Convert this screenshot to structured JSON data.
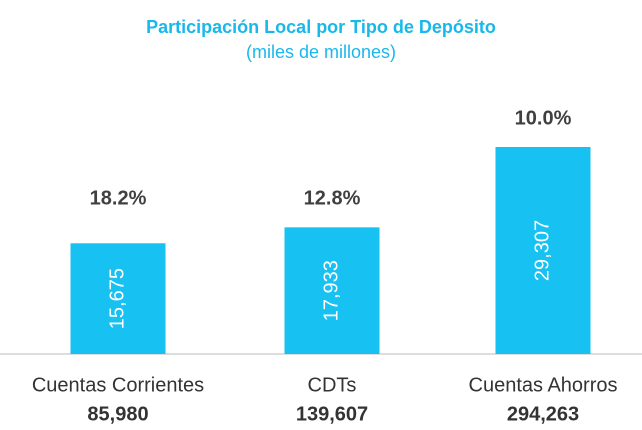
{
  "chart_data": {
    "type": "bar",
    "title": "Participación Local por Tipo de Depósito",
    "subtitle": "(miles de millones)",
    "categories": [
      "Cuentas Corrientes",
      "CDTs",
      "Cuentas Ahorros"
    ],
    "values": [
      15675,
      17933,
      29307
    ],
    "value_labels": [
      "15,675",
      "17,933",
      "29,307"
    ],
    "annotations": [
      "18.2%",
      "12.8%",
      "10.0%"
    ],
    "totals": [
      "85,980",
      "139,607",
      "294,263"
    ],
    "color": "#17c1f2"
  }
}
